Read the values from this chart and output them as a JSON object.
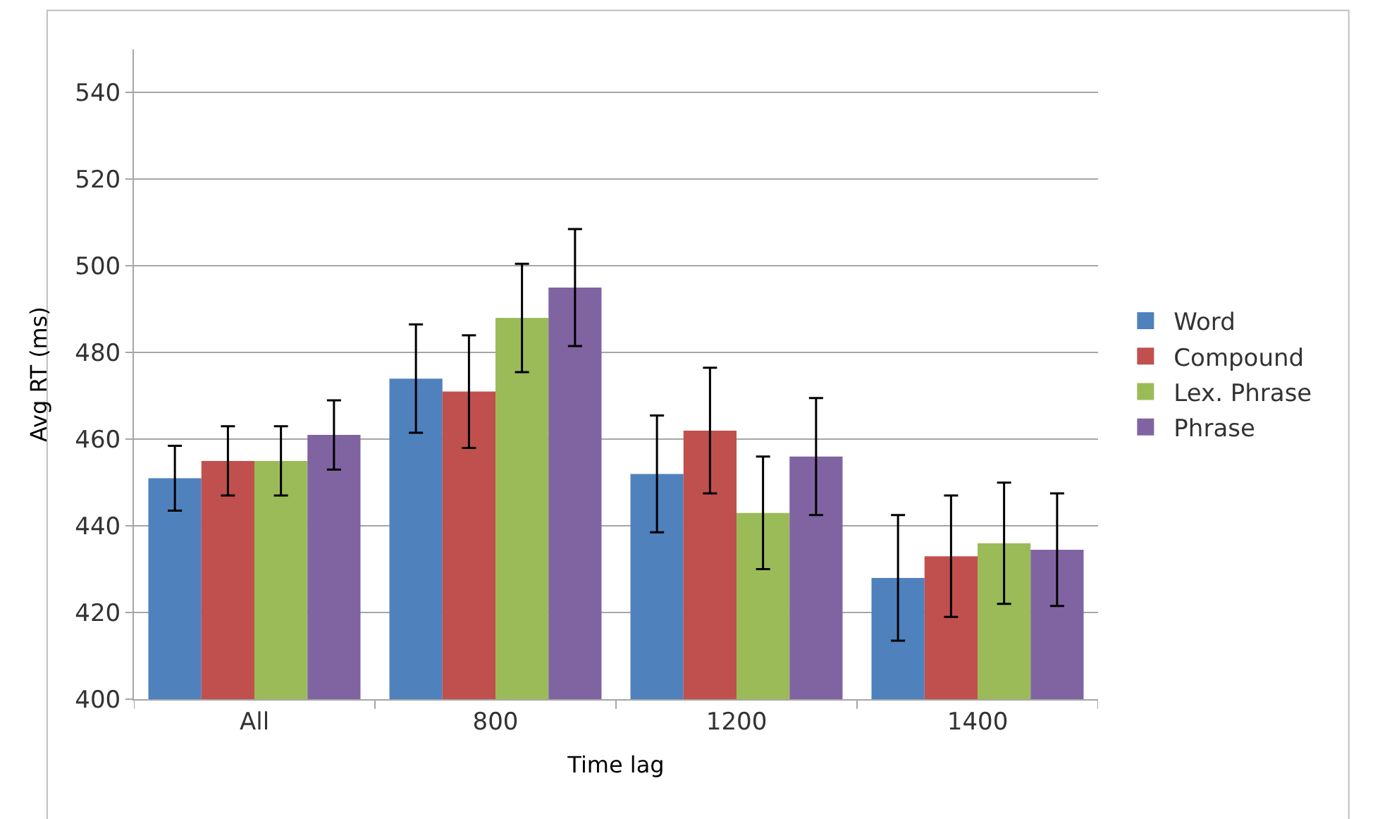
{
  "chart_data": {
    "type": "bar",
    "xlabel": "Time lag",
    "ylabel": "Avg RT (ms)",
    "categories": [
      "All",
      "800",
      "1200",
      "1400"
    ],
    "series": [
      {
        "name": "Word",
        "color": "#4f81bd",
        "values": [
          451,
          474,
          452,
          428
        ],
        "errors": [
          7.5,
          12.5,
          13.5,
          14.5
        ]
      },
      {
        "name": "Compound",
        "color": "#c0504d",
        "values": [
          455,
          471,
          462,
          433
        ],
        "errors": [
          8,
          13,
          14.5,
          14
        ]
      },
      {
        "name": "Lex. Phrase",
        "color": "#9bbb59",
        "values": [
          455,
          488,
          443,
          436
        ],
        "errors": [
          8,
          12.5,
          13,
          14
        ]
      },
      {
        "name": "Phrase",
        "color": "#8064a2",
        "values": [
          461,
          495,
          456,
          434.5
        ],
        "errors": [
          8,
          13.5,
          13.5,
          13
        ]
      }
    ],
    "ylim": [
      400,
      550
    ],
    "yticks": [
      400,
      420,
      440,
      460,
      480,
      500,
      520,
      540
    ],
    "grid": "y",
    "legend": "right"
  }
}
